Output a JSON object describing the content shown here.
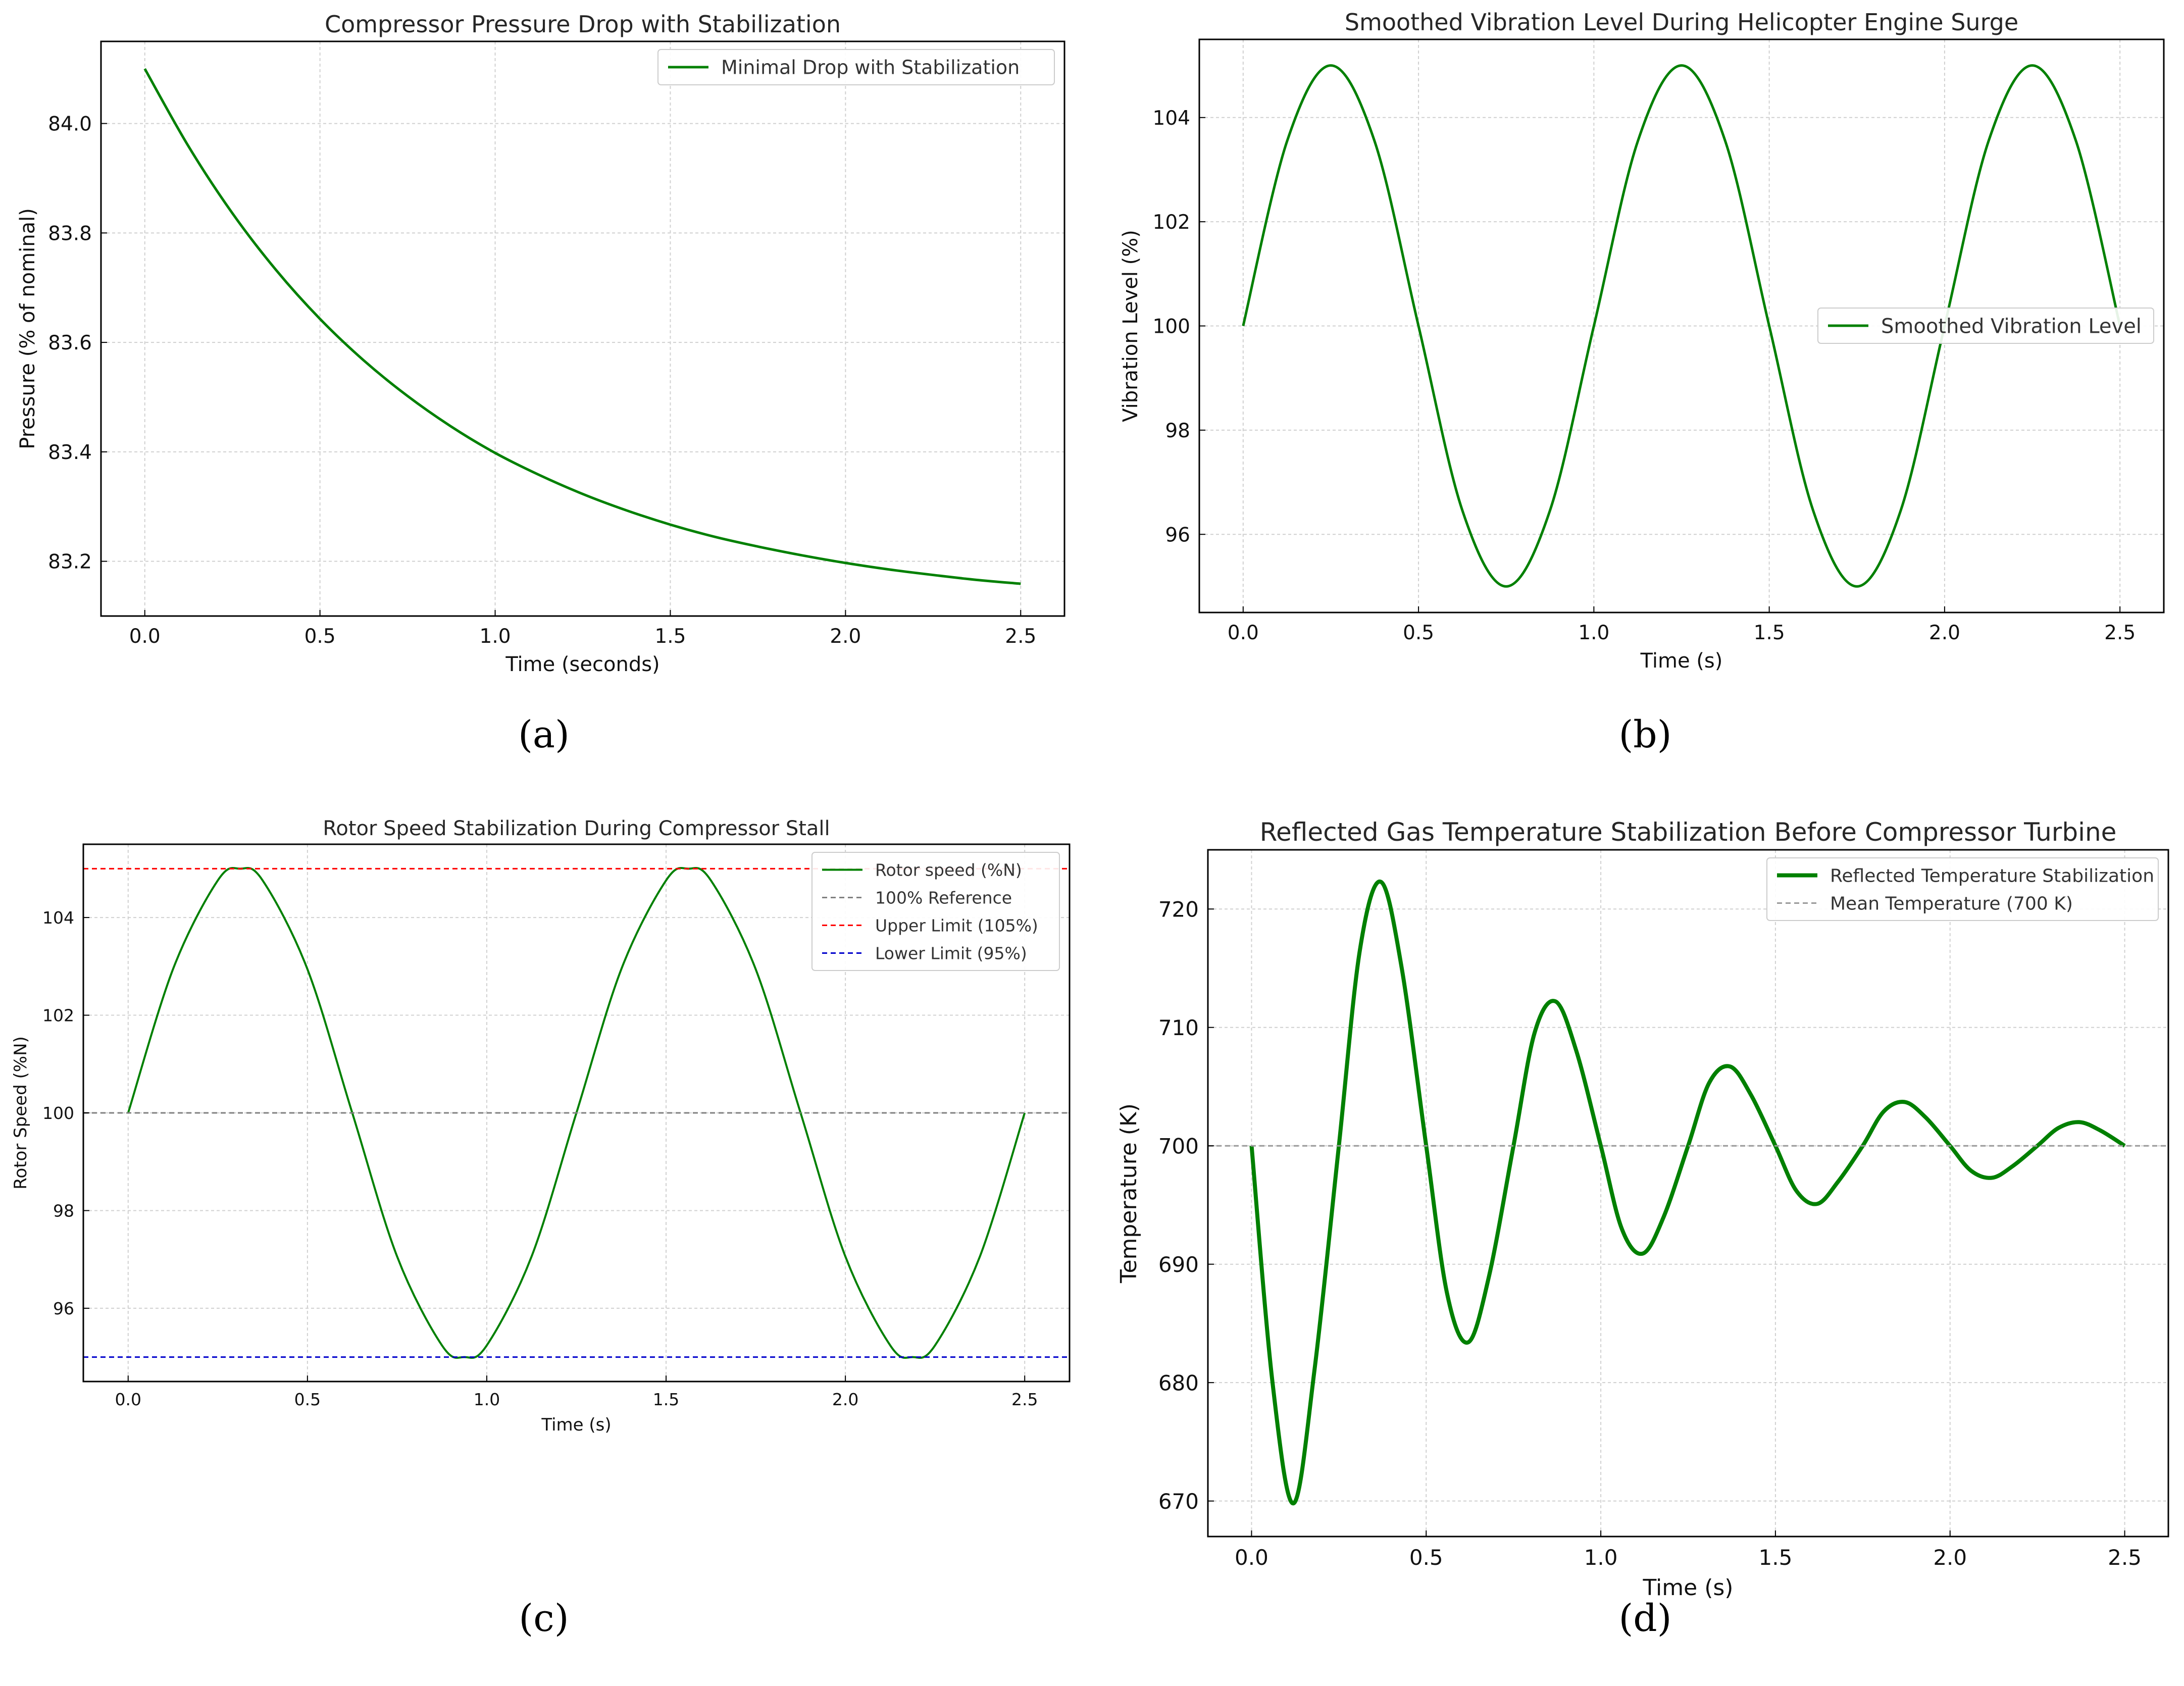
{
  "chart_data": [
    {
      "id": "a",
      "type": "line",
      "panel_label": "(a)",
      "title": "Compressor Pressure Drop with Stabilization",
      "xlabel": "Time (seconds)",
      "ylabel": "Pressure (% of nominal)",
      "xlim": [
        -0.125,
        2.625
      ],
      "ylim": [
        83.1,
        84.15
      ],
      "xticks": [
        0.0,
        0.5,
        1.0,
        1.5,
        2.0,
        2.5
      ],
      "xtick_labels": [
        "0.0",
        "0.5",
        "1.0",
        "1.5",
        "2.0",
        "2.5"
      ],
      "yticks": [
        83.2,
        83.4,
        83.6,
        83.8,
        84.0
      ],
      "ytick_labels": [
        "83.2",
        "83.4",
        "83.6",
        "83.8",
        "84.0"
      ],
      "grid": true,
      "legend_position": "top-right",
      "series": [
        {
          "name": "Minimal Drop with Stabilization",
          "color": "#008000",
          "style": "solid",
          "x": [
            0.0,
            0.125,
            0.25,
            0.375,
            0.5,
            0.625,
            0.75,
            0.875,
            1.0,
            1.125,
            1.25,
            1.375,
            1.5,
            1.625,
            1.75,
            1.875,
            2.0,
            2.125,
            2.25,
            2.375,
            2.5
          ],
          "y": [
            84.1,
            83.958,
            83.836,
            83.732,
            83.643,
            83.567,
            83.502,
            83.446,
            83.398,
            83.358,
            83.323,
            83.293,
            83.267,
            83.245,
            83.227,
            83.211,
            83.197,
            83.185,
            83.175,
            83.166,
            83.159
          ]
        }
      ]
    },
    {
      "id": "b",
      "type": "line",
      "panel_label": "(b)",
      "title": "Smoothed Vibration Level During Helicopter Engine Surge",
      "xlabel": "Time (s)",
      "ylabel": "Vibration Level (%)",
      "xlim": [
        -0.125,
        2.625
      ],
      "ylim": [
        94.5,
        105.5
      ],
      "xticks": [
        0.0,
        0.5,
        1.0,
        1.5,
        2.0,
        2.5
      ],
      "xtick_labels": [
        "0.0",
        "0.5",
        "1.0",
        "1.5",
        "2.0",
        "2.5"
      ],
      "yticks": [
        96,
        98,
        100,
        102,
        104
      ],
      "ytick_labels": [
        "96",
        "98",
        "100",
        "102",
        "104"
      ],
      "grid": true,
      "legend_position": "center-right",
      "series": [
        {
          "name": "Smoothed Vibration Level",
          "color": "#008000",
          "style": "solid",
          "x": [
            0.0,
            0.125,
            0.25,
            0.375,
            0.5,
            0.625,
            0.75,
            0.875,
            1.0,
            1.125,
            1.25,
            1.375,
            1.5,
            1.625,
            1.75,
            1.875,
            2.0,
            2.125,
            2.25,
            2.375,
            2.5
          ],
          "y": [
            100.0,
            103.54,
            105.0,
            103.54,
            100.0,
            96.46,
            95.0,
            96.46,
            100.0,
            103.54,
            105.0,
            103.54,
            100.0,
            96.46,
            95.0,
            96.46,
            100.0,
            103.54,
            105.0,
            103.54,
            100.0
          ]
        }
      ]
    },
    {
      "id": "c",
      "type": "line",
      "panel_label": "(c)",
      "title": "Rotor Speed Stabilization During Compressor Stall",
      "xlabel": "Time (s)",
      "ylabel": "Rotor Speed (%N)",
      "xlim": [
        -0.125,
        2.625
      ],
      "ylim": [
        94.5,
        105.5
      ],
      "xticks": [
        0.0,
        0.5,
        1.0,
        1.5,
        2.0,
        2.5
      ],
      "xtick_labels": [
        "0.0",
        "0.5",
        "1.0",
        "1.5",
        "2.0",
        "2.5"
      ],
      "yticks": [
        96,
        98,
        100,
        102,
        104
      ],
      "ytick_labels": [
        "96",
        "98",
        "100",
        "102",
        "104"
      ],
      "grid": true,
      "legend_position": "top-right",
      "series": [
        {
          "name": "Rotor speed (%N)",
          "color": "#008000",
          "style": "solid",
          "x": [
            0.0,
            0.125,
            0.25,
            0.3125,
            0.375,
            0.5,
            0.625,
            0.75,
            0.875,
            0.9375,
            1.0,
            1.125,
            1.25,
            1.375,
            1.5,
            1.5625,
            1.625,
            1.75,
            1.875,
            2.0,
            2.125,
            2.1875,
            2.25,
            2.375,
            2.5
          ],
          "y": [
            100.0,
            102.94,
            104.76,
            105.0,
            104.76,
            102.94,
            100.0,
            97.06,
            95.24,
            95.0,
            95.24,
            97.06,
            100.0,
            102.94,
            104.76,
            105.0,
            104.76,
            102.94,
            100.0,
            97.06,
            95.24,
            95.0,
            95.24,
            97.06,
            100.0
          ]
        },
        {
          "name": "100% Reference",
          "color": "#808080",
          "style": "dashed",
          "hline": 100
        },
        {
          "name": "Upper Limit (105%)",
          "color": "#ff0000",
          "style": "dashed",
          "hline": 105
        },
        {
          "name": "Lower Limit (95%)",
          "color": "#0000cc",
          "style": "dashed",
          "hline": 95
        }
      ]
    },
    {
      "id": "d",
      "type": "line",
      "panel_label": "(d)",
      "title": "Reflected Gas Temperature Stabilization Before Compressor Turbine",
      "xlabel": "Time (s)",
      "ylabel": "Temperature (K)",
      "xlim": [
        -0.125,
        2.625
      ],
      "ylim": [
        667.0,
        725.0
      ],
      "xticks": [
        0.0,
        0.5,
        1.0,
        1.5,
        2.0,
        2.5
      ],
      "xtick_labels": [
        "0.0",
        "0.5",
        "1.0",
        "1.5",
        "2.0",
        "2.5"
      ],
      "yticks": [
        670,
        680,
        690,
        700,
        710,
        720
      ],
      "ytick_labels": [
        "670",
        "680",
        "690",
        "700",
        "710",
        "720"
      ],
      "grid": true,
      "legend_position": "top-right",
      "series": [
        {
          "name": "Reflected Temperature Stabilization",
          "color": "#008000",
          "style": "solid-thick",
          "x": [
            0.0,
            0.06,
            0.12,
            0.18,
            0.25,
            0.31,
            0.37,
            0.43,
            0.5,
            0.56,
            0.62,
            0.68,
            0.75,
            0.81,
            0.87,
            0.93,
            1.0,
            1.06,
            1.12,
            1.18,
            1.25,
            1.31,
            1.37,
            1.43,
            1.5,
            1.56,
            1.62,
            1.68,
            1.75,
            1.81,
            1.87,
            1.93,
            2.0,
            2.06,
            2.12,
            2.18,
            2.25,
            2.31,
            2.37,
            2.43,
            2.5
          ],
          "y": [
            700.0,
            680.0,
            669.8,
            681.0,
            700.0,
            716.5,
            722.3,
            715.0,
            700.0,
            687.5,
            683.4,
            689.0,
            700.0,
            709.5,
            712.2,
            708.0,
            700.0,
            693.0,
            690.9,
            694.0,
            700.0,
            705.3,
            706.7,
            704.3,
            700.0,
            696.2,
            695.1,
            697.0,
            700.0,
            702.9,
            703.7,
            702.4,
            700.0,
            697.9,
            697.3,
            698.3,
            700.0,
            701.5,
            702.0,
            701.3,
            700.0
          ]
        },
        {
          "name": "Mean Temperature (700 K)",
          "color": "#999999",
          "style": "dashed",
          "hline": 700
        }
      ]
    }
  ]
}
